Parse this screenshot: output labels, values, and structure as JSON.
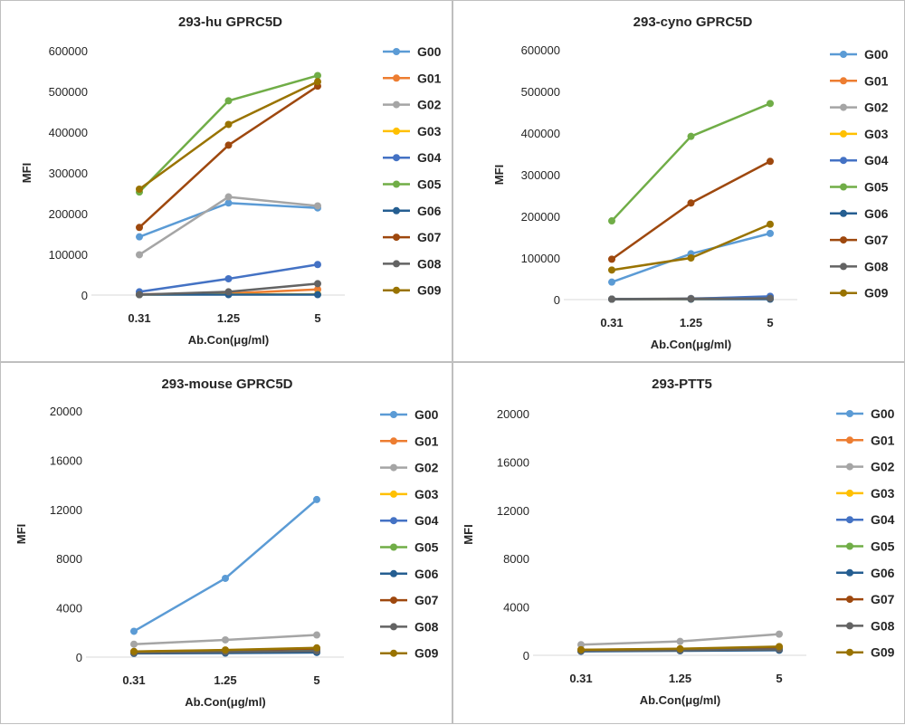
{
  "chart_data": [
    {
      "type": "line",
      "title": "293-hu GPRC5D",
      "xlabel": "Ab.Con(μg/ml)",
      "ylabel": "MFI",
      "categories": [
        "0.31",
        "1.25",
        "5"
      ],
      "yticks": [
        "0",
        "100000",
        "200000",
        "300000",
        "400000",
        "500000",
        "600000"
      ],
      "ylim": [
        0,
        600000
      ],
      "legend_position": "right",
      "grid": false,
      "series": [
        {
          "name": "G00",
          "color": "#5B9BD5",
          "values": [
            143000,
            226000,
            214000
          ]
        },
        {
          "name": "G01",
          "color": "#ED7D31",
          "values": [
            2000,
            4000,
            14000
          ]
        },
        {
          "name": "G02",
          "color": "#A5A5A5",
          "values": [
            99000,
            241000,
            219000
          ]
        },
        {
          "name": "G03",
          "color": "#FFC000",
          "values": [
            1000,
            2000,
            2000
          ]
        },
        {
          "name": "G04",
          "color": "#4472C4",
          "values": [
            8000,
            40000,
            75000
          ]
        },
        {
          "name": "G05",
          "color": "#70AD47",
          "values": [
            253000,
            477000,
            539000
          ]
        },
        {
          "name": "G06",
          "color": "#255E91",
          "values": [
            1000,
            1000,
            1000
          ]
        },
        {
          "name": "G07",
          "color": "#9E480E",
          "values": [
            166000,
            368000,
            513000
          ]
        },
        {
          "name": "G08",
          "color": "#636363",
          "values": [
            1000,
            8000,
            28000
          ]
        },
        {
          "name": "G09",
          "color": "#997300",
          "values": [
            260000,
            419000,
            524000
          ]
        }
      ]
    },
    {
      "type": "line",
      "title": "293-cyno GPRC5D",
      "xlabel": "Ab.Con(μg/ml)",
      "ylabel": "MFI",
      "categories": [
        "0.31",
        "1.25",
        "5"
      ],
      "yticks": [
        "0",
        "100000",
        "200000",
        "300000",
        "400000",
        "500000",
        "600000"
      ],
      "ylim": [
        0,
        600000
      ],
      "legend_position": "right",
      "grid": false,
      "series": [
        {
          "name": "G00",
          "color": "#5B9BD5",
          "values": [
            42000,
            110000,
            159000
          ]
        },
        {
          "name": "G01",
          "color": "#ED7D31",
          "values": [
            1000,
            2000,
            3000
          ]
        },
        {
          "name": "G02",
          "color": "#A5A5A5",
          "values": [
            1000,
            3000,
            6000
          ]
        },
        {
          "name": "G03",
          "color": "#FFC000",
          "values": [
            1000,
            1000,
            2000
          ]
        },
        {
          "name": "G04",
          "color": "#4472C4",
          "values": [
            1000,
            2000,
            8000
          ]
        },
        {
          "name": "G05",
          "color": "#70AD47",
          "values": [
            189000,
            392000,
            471000
          ]
        },
        {
          "name": "G06",
          "color": "#255E91",
          "values": [
            1000,
            1000,
            1000
          ]
        },
        {
          "name": "G07",
          "color": "#9E480E",
          "values": [
            97000,
            232000,
            332000
          ]
        },
        {
          "name": "G08",
          "color": "#636363",
          "values": [
            1000,
            2000,
            3000
          ]
        },
        {
          "name": "G09",
          "color": "#997300",
          "values": [
            71000,
            100000,
            181000
          ]
        }
      ]
    },
    {
      "type": "line",
      "title": "293-mouse GPRC5D",
      "xlabel": "Ab.Con(μg/ml)",
      "ylabel": "MFI",
      "categories": [
        "0.31",
        "1.25",
        "5"
      ],
      "yticks": [
        "0",
        "4000",
        "8000",
        "12000",
        "16000",
        "20000"
      ],
      "ylim": [
        0,
        20000
      ],
      "legend_position": "right",
      "grid": false,
      "series": [
        {
          "name": "G00",
          "color": "#5B9BD5",
          "values": [
            2100,
            6400,
            12800
          ]
        },
        {
          "name": "G01",
          "color": "#ED7D31",
          "values": [
            450,
            550,
            650
          ]
        },
        {
          "name": "G02",
          "color": "#A5A5A5",
          "values": [
            1050,
            1400,
            1800
          ]
        },
        {
          "name": "G03",
          "color": "#FFC000",
          "values": [
            420,
            520,
            620
          ]
        },
        {
          "name": "G04",
          "color": "#4472C4",
          "values": [
            330,
            380,
            450
          ]
        },
        {
          "name": "G05",
          "color": "#70AD47",
          "values": [
            400,
            480,
            560
          ]
        },
        {
          "name": "G06",
          "color": "#255E91",
          "values": [
            300,
            330,
            380
          ]
        },
        {
          "name": "G07",
          "color": "#9E480E",
          "values": [
            430,
            550,
            700
          ]
        },
        {
          "name": "G08",
          "color": "#636363",
          "values": [
            350,
            420,
            500
          ]
        },
        {
          "name": "G09",
          "color": "#997300",
          "values": [
            460,
            580,
            750
          ]
        }
      ]
    },
    {
      "type": "line",
      "title": "293-PTT5",
      "xlabel": "Ab.Con(μg/ml)",
      "ylabel": "MFI",
      "categories": [
        "0.31",
        "1.25",
        "5"
      ],
      "yticks": [
        "0",
        "4000",
        "8000",
        "12000",
        "16000",
        "20000"
      ],
      "ylim": [
        0,
        20000
      ],
      "legend_position": "right",
      "grid": false,
      "series": [
        {
          "name": "G00",
          "color": "#5B9BD5",
          "values": [
            420,
            480,
            500
          ]
        },
        {
          "name": "G01",
          "color": "#ED7D31",
          "values": [
            450,
            520,
            650
          ]
        },
        {
          "name": "G02",
          "color": "#A5A5A5",
          "values": [
            880,
            1150,
            1750
          ]
        },
        {
          "name": "G03",
          "color": "#FFC000",
          "values": [
            420,
            500,
            620
          ]
        },
        {
          "name": "G04",
          "color": "#4472C4",
          "values": [
            350,
            400,
            450
          ]
        },
        {
          "name": "G05",
          "color": "#70AD47",
          "values": [
            400,
            460,
            560
          ]
        },
        {
          "name": "G06",
          "color": "#255E91",
          "values": [
            330,
            370,
            420
          ]
        },
        {
          "name": "G07",
          "color": "#9E480E",
          "values": [
            430,
            500,
            650
          ]
        },
        {
          "name": "G08",
          "color": "#636363",
          "values": [
            370,
            420,
            500
          ]
        },
        {
          "name": "G09",
          "color": "#997300",
          "values": [
            460,
            540,
            720
          ]
        }
      ]
    }
  ]
}
